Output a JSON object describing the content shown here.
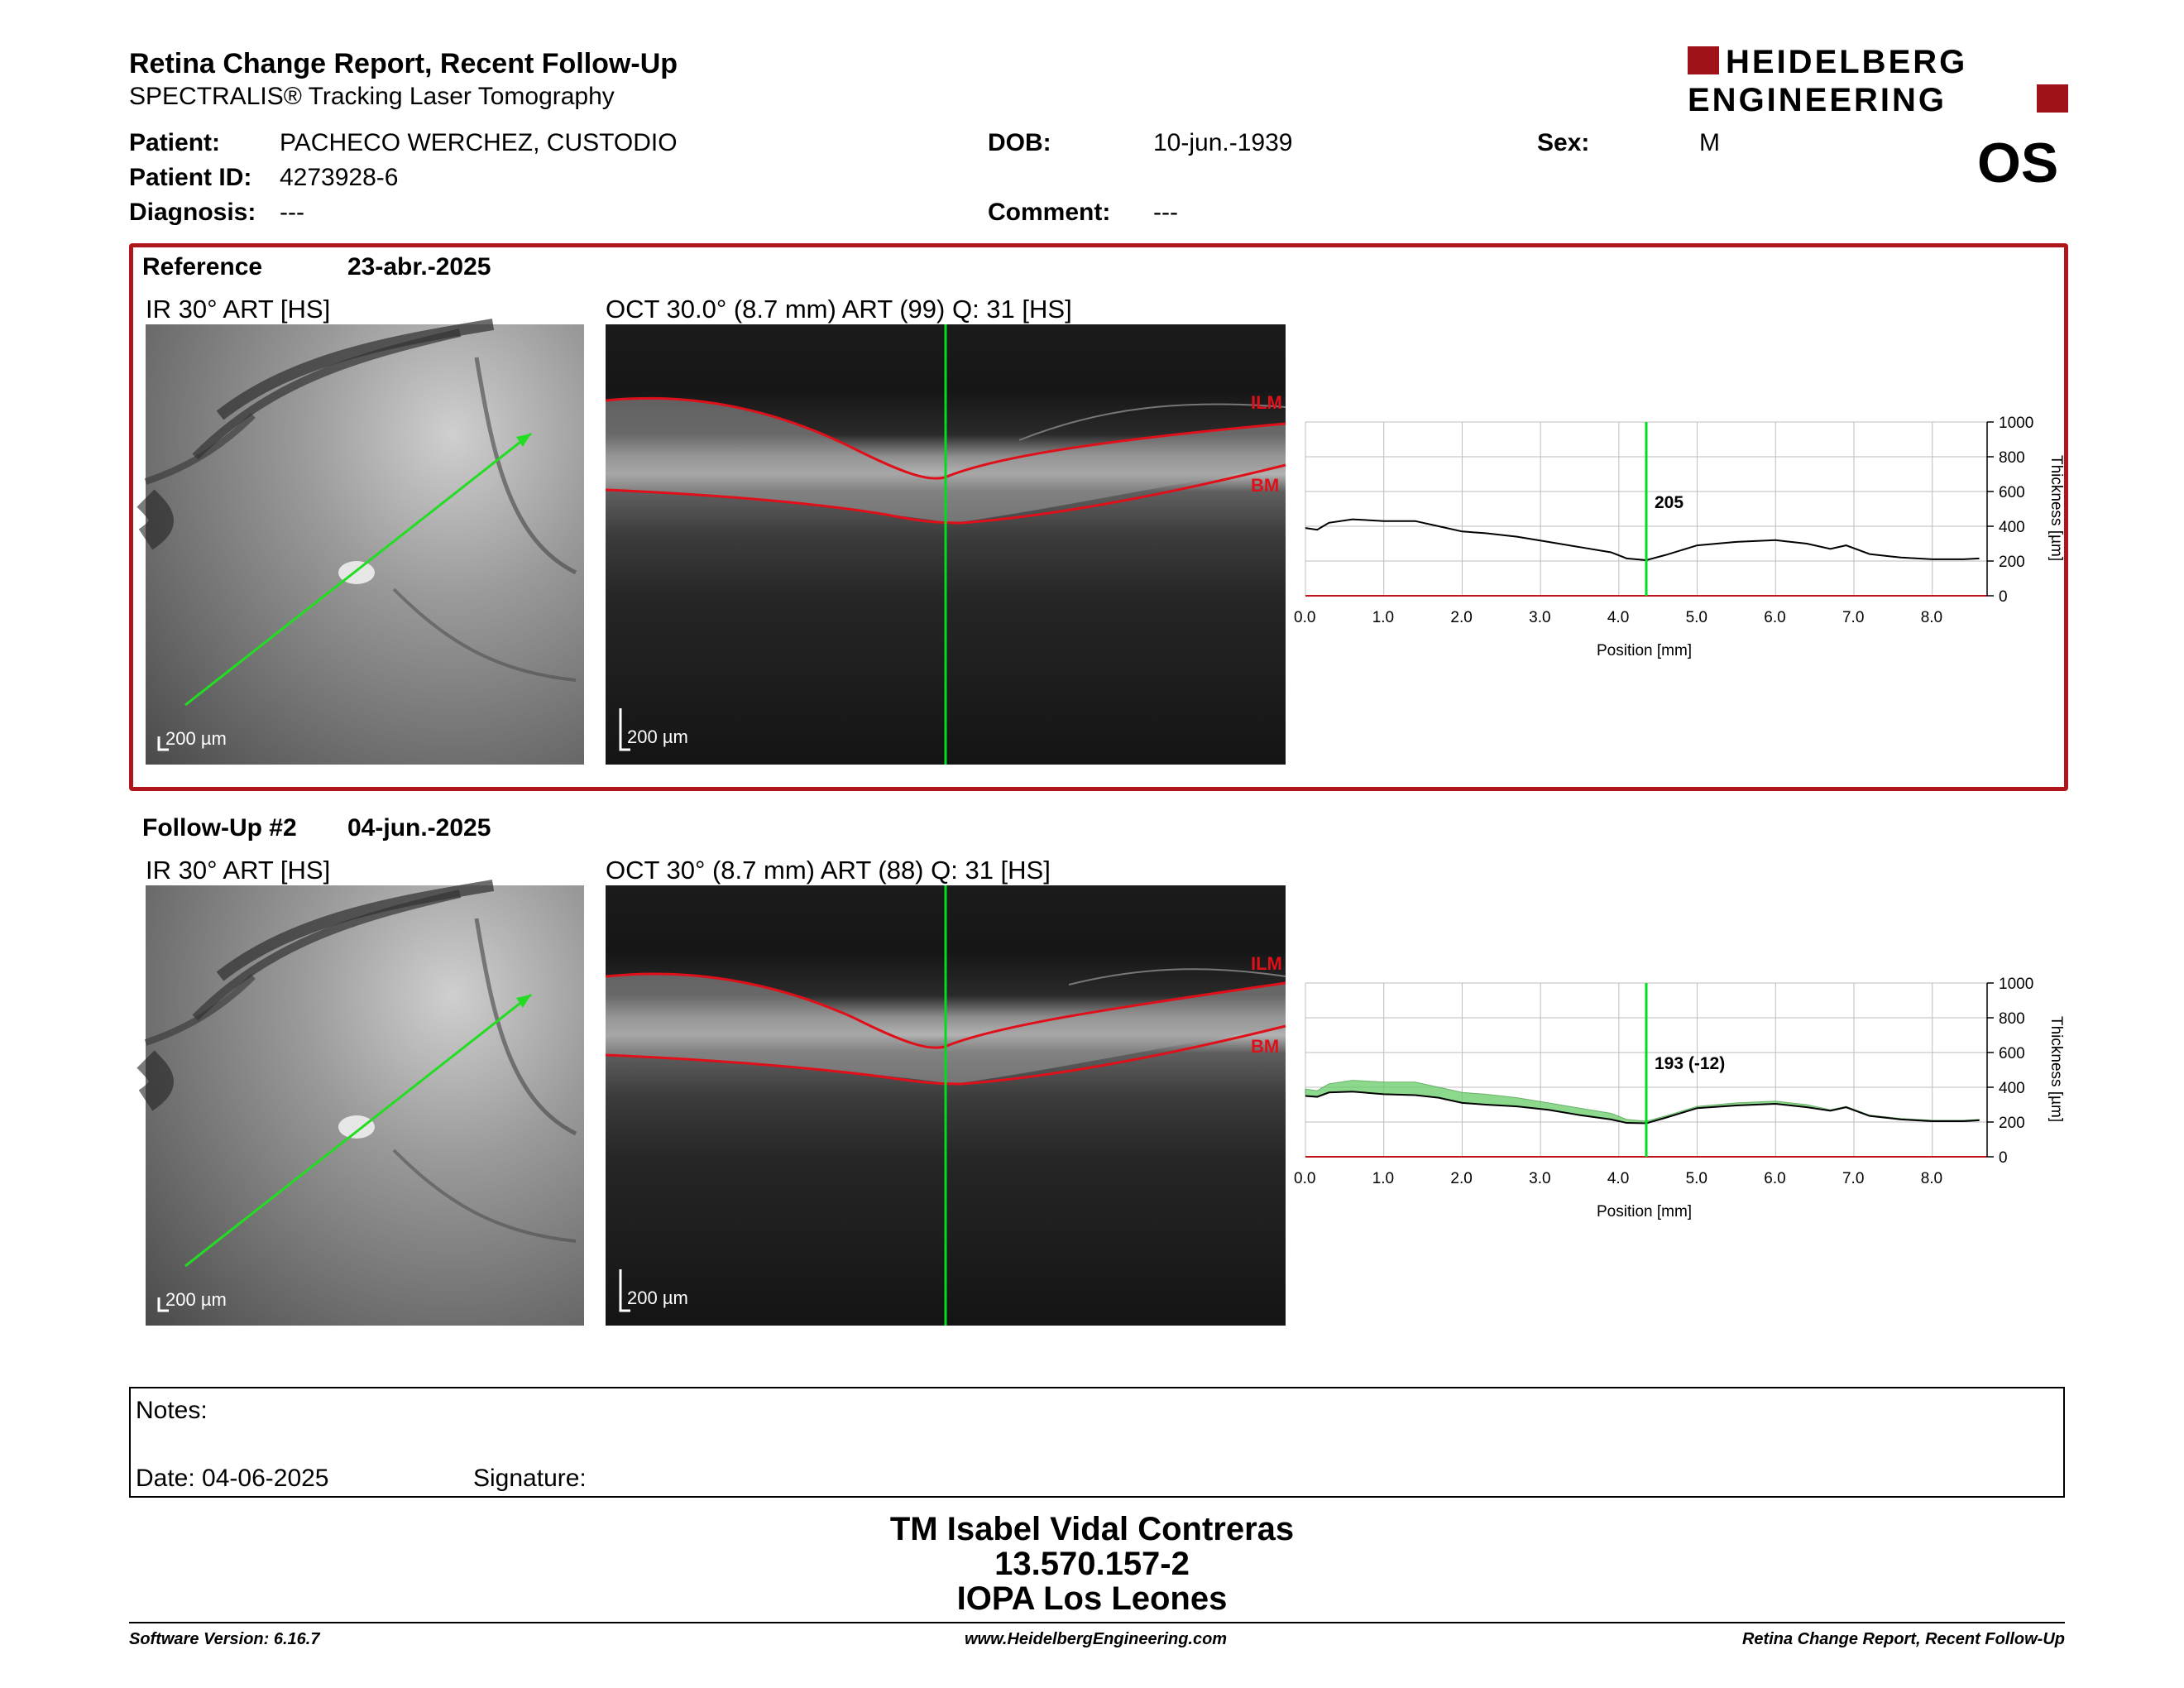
{
  "header": {
    "title": "Retina Change Report, Recent Follow-Up",
    "subtitle": "SPECTRALIS® Tracking Laser Tomography",
    "logo_line1": "HEIDELBERG",
    "logo_line2": "ENGINEERING",
    "eye": "OS"
  },
  "patient": {
    "name_label": "Patient:",
    "name": "PACHECO WERCHEZ, CUSTODIO",
    "id_label": "Patient ID:",
    "id": "4273928-6",
    "diagnosis_label": "Diagnosis:",
    "diagnosis": "---",
    "dob_label": "DOB:",
    "dob": "10-jun.-1939",
    "comment_label": "Comment:",
    "comment": "---",
    "sex_label": "Sex:",
    "sex": "M"
  },
  "reference": {
    "title": "Reference",
    "date": "23-abr.-2025",
    "ir_label": "IR 30° ART [HS]",
    "oct_label": "OCT 30.0° (8.7 mm) ART (99) Q: 31 [HS]",
    "scale_label": "200 µm",
    "ilm": "ILM",
    "bm": "BM"
  },
  "followup": {
    "title": "Follow-Up #2",
    "date": "04-jun.-2025",
    "ir_label": "IR 30° ART [HS]",
    "oct_label": "OCT 30° (8.7 mm) ART (88) Q: 31 [HS]",
    "scale_label": "200 µm",
    "ilm": "ILM",
    "bm": "BM"
  },
  "chart_data": [
    {
      "type": "line",
      "xlabel": "Position [mm]",
      "ylabel": "Thickness [µm]",
      "xlim": [
        0,
        8.7
      ],
      "ylim": [
        0,
        1000
      ],
      "xticks": [
        "0.0",
        "1.0",
        "2.0",
        "3.0",
        "4.0",
        "5.0",
        "6.0",
        "7.0",
        "8.0"
      ],
      "yticks": [
        "0",
        "200",
        "400",
        "600",
        "800",
        "1000"
      ],
      "grid": true,
      "marker_x": 4.35,
      "marker_label": "205",
      "x": [
        0,
        0.15,
        0.3,
        0.6,
        1.0,
        1.4,
        1.7,
        2.0,
        2.3,
        2.7,
        3.1,
        3.5,
        3.9,
        4.1,
        4.35,
        4.6,
        5.0,
        5.5,
        6.0,
        6.4,
        6.7,
        6.9,
        7.2,
        7.6,
        8.0,
        8.4,
        8.6
      ],
      "series": [
        {
          "values": [
            390,
            380,
            420,
            440,
            430,
            430,
            400,
            370,
            360,
            340,
            310,
            280,
            250,
            215,
            205,
            235,
            290,
            310,
            320,
            300,
            270,
            290,
            240,
            220,
            210,
            210,
            215
          ]
        }
      ]
    },
    {
      "type": "area",
      "xlabel": "Position [mm]",
      "ylabel": "Thickness [µm]",
      "xlim": [
        0,
        8.7
      ],
      "ylim": [
        0,
        1000
      ],
      "xticks": [
        "0.0",
        "1.0",
        "2.0",
        "3.0",
        "4.0",
        "5.0",
        "6.0",
        "7.0",
        "8.0"
      ],
      "yticks": [
        "0",
        "200",
        "400",
        "600",
        "800",
        "1000"
      ],
      "grid": true,
      "marker_x": 4.35,
      "marker_label": "193 (-12)",
      "x": [
        0,
        0.15,
        0.3,
        0.6,
        1.0,
        1.4,
        1.7,
        2.0,
        2.3,
        2.7,
        3.1,
        3.5,
        3.9,
        4.1,
        4.35,
        4.6,
        5.0,
        5.5,
        6.0,
        6.4,
        6.7,
        6.9,
        7.2,
        7.6,
        8.0,
        8.4,
        8.6
      ],
      "series": [
        {
          "values": [
            350,
            345,
            370,
            375,
            360,
            355,
            340,
            310,
            300,
            290,
            270,
            240,
            215,
            195,
            193,
            225,
            280,
            295,
            305,
            285,
            265,
            285,
            235,
            215,
            205,
            205,
            210
          ]
        },
        {
          "values": [
            390,
            380,
            420,
            440,
            430,
            430,
            400,
            370,
            360,
            340,
            310,
            280,
            250,
            215,
            205,
            235,
            290,
            310,
            320,
            300,
            270,
            290,
            240,
            220,
            210,
            210,
            215
          ]
        }
      ]
    }
  ],
  "notes": {
    "notes_label": "Notes:",
    "date_label": "Date: 04-06-2025",
    "signature_label": "Signature:"
  },
  "signature": {
    "line1": "TM Isabel Vidal Contreras",
    "line2": "13.570.157-2",
    "line3": "IOPA Los Leones"
  },
  "footer": {
    "left": "Software Version: 6.16.7",
    "center": "www.HeidelbergEngineering.com",
    "right": "Retina Change Report, Recent Follow-Up"
  },
  "colors": {
    "frame": "#b0141c",
    "scan_line": "#00dd22",
    "ilm_bm": "#e0101a",
    "change_fill": "#66cc66"
  }
}
